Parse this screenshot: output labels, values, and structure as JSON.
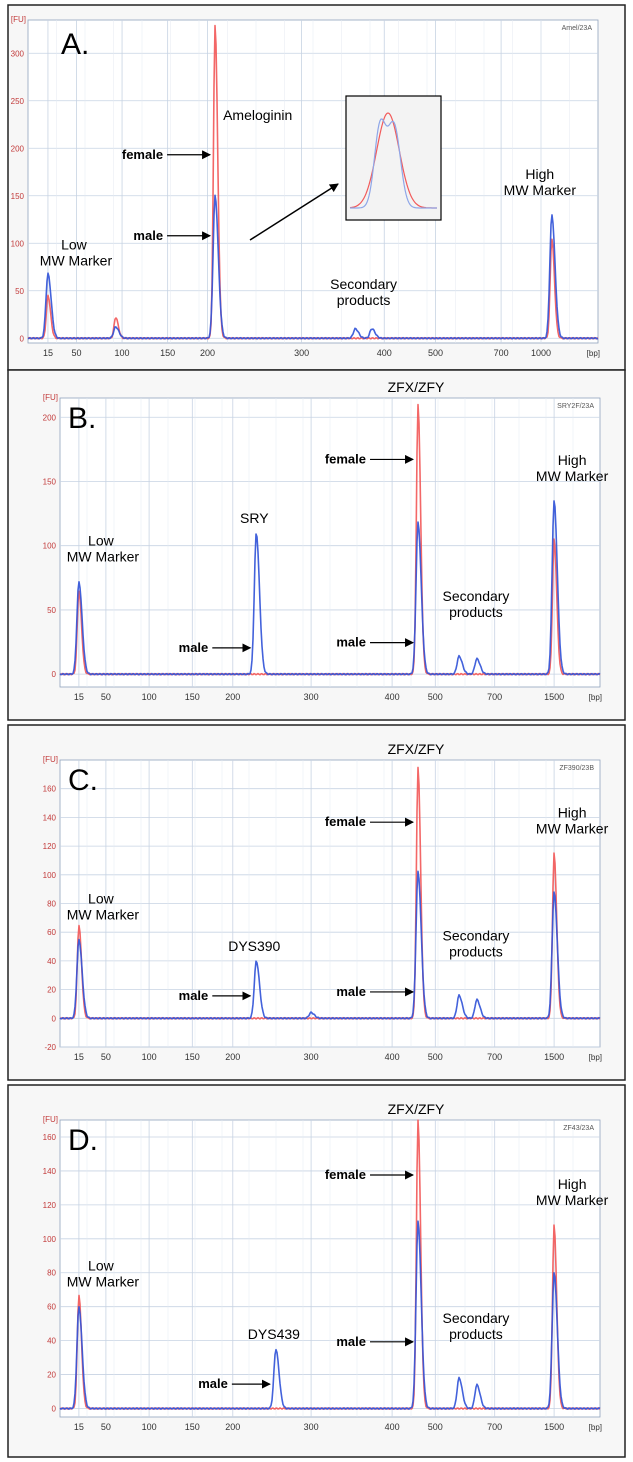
{
  "figure_title": "",
  "colors": {
    "female": "#f25a5a",
    "male": "#3355d8",
    "grid": "#c7d3e3",
    "panel_bg": "#f7f7f7"
  },
  "chart_data": [
    {
      "type": "line",
      "panel_label": "A.",
      "run_id": "Amel/23A",
      "y_unit": "[FU]",
      "x_unit": "[bp]",
      "x_ticks": [
        "15",
        "50",
        "100",
        "150",
        "200",
        "300",
        "400",
        "500",
        "700",
        "1000"
      ],
      "y_ticks": [
        0,
        50,
        100,
        150,
        200,
        250,
        300
      ],
      "ylim": [
        -5,
        335
      ],
      "series": [
        {
          "name": "female",
          "color": "#f25a5a",
          "peaks": [
            {
              "x": 15,
              "y": 45
            },
            {
              "x": 93,
              "y": 22
            },
            {
              "x": 208,
              "y": 330
            },
            {
              "x": 1380,
              "y": 105
            }
          ]
        },
        {
          "name": "male",
          "color": "#3355d8",
          "peaks": [
            {
              "x": 15,
              "y": 68
            },
            {
              "x": 93,
              "y": 12
            },
            {
              "x": 208,
              "y": 150
            },
            {
              "x": 365,
              "y": 10
            },
            {
              "x": 385,
              "y": 10
            },
            {
              "x": 1380,
              "y": 130
            }
          ]
        }
      ],
      "annotations": {
        "peak_name": "Ameloginin",
        "female": "female",
        "male": "male",
        "low_marker": [
          "Low",
          "MW Marker"
        ],
        "high_marker": [
          "High",
          "MW Marker"
        ],
        "secondary": [
          "Secondary",
          "products"
        ]
      }
    },
    {
      "type": "line",
      "panel_label": "B.",
      "run_id": "SRY2F/23A",
      "y_unit": "[FU]",
      "x_unit": "[bp]",
      "x_ticks": [
        "15",
        "50",
        "100",
        "150",
        "200",
        "300",
        "400",
        "500",
        "700",
        "1500"
      ],
      "y_ticks": [
        0,
        50,
        100,
        150,
        200
      ],
      "ylim": [
        -10,
        215
      ],
      "series": [
        {
          "name": "female",
          "color": "#f25a5a",
          "peaks": [
            {
              "x": 15,
              "y": 65
            },
            {
              "x": 460,
              "y": 210
            },
            {
              "x": 1500,
              "y": 105
            }
          ]
        },
        {
          "name": "male",
          "color": "#3355d8",
          "peaks": [
            {
              "x": 15,
              "y": 72
            },
            {
              "x": 230,
              "y": 110
            },
            {
              "x": 460,
              "y": 118
            },
            {
              "x": 580,
              "y": 14
            },
            {
              "x": 640,
              "y": 12
            },
            {
              "x": 1500,
              "y": 135
            }
          ]
        }
      ],
      "annotations": {
        "peak_name": "ZFX/ZFY",
        "target_name": "SRY",
        "female": "female",
        "male": "male",
        "low_marker": [
          "Low",
          "MW Marker"
        ],
        "high_marker": [
          "High",
          "MW Marker"
        ],
        "secondary": [
          "Secondary",
          "products"
        ]
      }
    },
    {
      "type": "line",
      "panel_label": "C.",
      "run_id": "ZF390/23B",
      "y_unit": "[FU]",
      "x_unit": "[bp]",
      "x_ticks": [
        "15",
        "50",
        "100",
        "150",
        "200",
        "300",
        "400",
        "500",
        "700",
        "1500"
      ],
      "y_ticks": [
        -20,
        0,
        20,
        40,
        60,
        80,
        100,
        120,
        140,
        160
      ],
      "ylim": [
        -20,
        180
      ],
      "series": [
        {
          "name": "female",
          "color": "#f25a5a",
          "peaks": [
            {
              "x": 15,
              "y": 65
            },
            {
              "x": 460,
              "y": 175
            },
            {
              "x": 1500,
              "y": 115
            }
          ]
        },
        {
          "name": "male",
          "color": "#3355d8",
          "peaks": [
            {
              "x": 15,
              "y": 55
            },
            {
              "x": 230,
              "y": 40
            },
            {
              "x": 300,
              "y": 4
            },
            {
              "x": 460,
              "y": 102
            },
            {
              "x": 580,
              "y": 16
            },
            {
              "x": 640,
              "y": 13
            },
            {
              "x": 1500,
              "y": 88
            }
          ]
        }
      ],
      "annotations": {
        "peak_name": "ZFX/ZFY",
        "target_name": "DYS390",
        "female": "female",
        "male": "male",
        "low_marker": [
          "Low",
          "MW Marker"
        ],
        "high_marker": [
          "High",
          "MW Marker"
        ],
        "secondary": [
          "Secondary",
          "products"
        ]
      }
    },
    {
      "type": "line",
      "panel_label": "D.",
      "run_id": "ZF43/23A",
      "y_unit": "[FU]",
      "x_unit": "[bp]",
      "x_ticks": [
        "15",
        "50",
        "100",
        "150",
        "200",
        "300",
        "400",
        "500",
        "700",
        "1500"
      ],
      "y_ticks": [
        0,
        20,
        40,
        60,
        80,
        100,
        120,
        140,
        160
      ],
      "ylim": [
        -5,
        170
      ],
      "series": [
        {
          "name": "female",
          "color": "#f25a5a",
          "peaks": [
            {
              "x": 15,
              "y": 67
            },
            {
              "x": 460,
              "y": 170
            },
            {
              "x": 1500,
              "y": 108
            }
          ]
        },
        {
          "name": "male",
          "color": "#3355d8",
          "peaks": [
            {
              "x": 15,
              "y": 60
            },
            {
              "x": 255,
              "y": 35
            },
            {
              "x": 460,
              "y": 110
            },
            {
              "x": 580,
              "y": 18
            },
            {
              "x": 640,
              "y": 14
            },
            {
              "x": 1500,
              "y": 80
            }
          ]
        }
      ],
      "annotations": {
        "peak_name": "ZFX/ZFY",
        "target_name": "DYS439",
        "female": "female",
        "male": "male",
        "low_marker": [
          "Low",
          "MW Marker"
        ],
        "high_marker": [
          "High",
          "MW Marker"
        ],
        "secondary": [
          "Secondary",
          "products"
        ]
      }
    }
  ]
}
